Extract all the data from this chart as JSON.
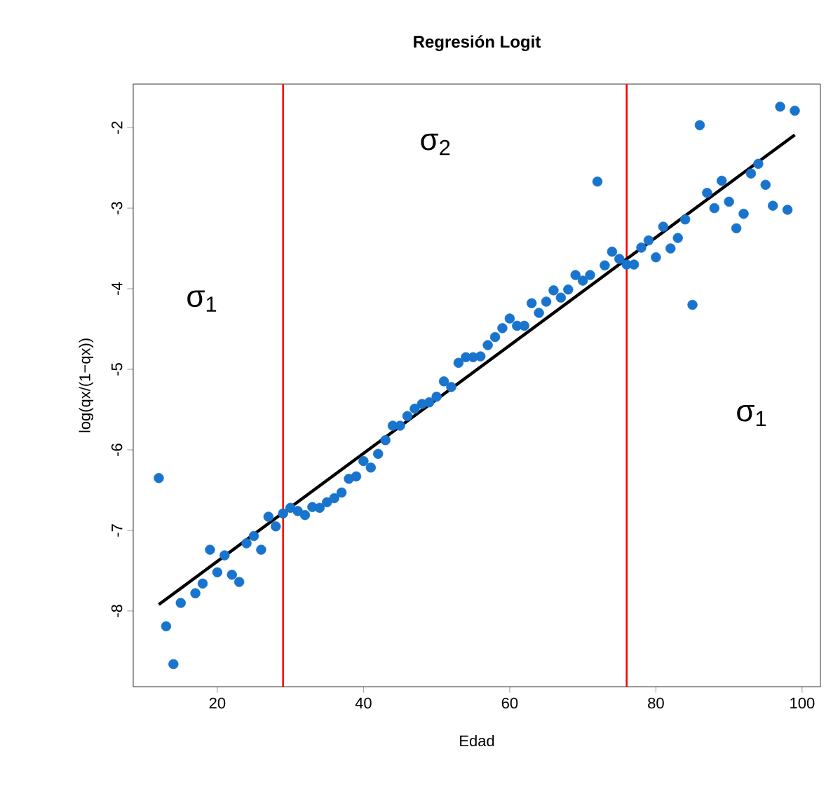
{
  "chart_data": {
    "type": "scatter",
    "title": "**Regresión Logit**",
    "xlabel": "Edad",
    "ylabel": "log(qx/(1−qx))",
    "xlim": [
      8.5,
      102.5
    ],
    "ylim": [
      -8.94,
      -1.46
    ],
    "xticks": [
      20,
      40,
      60,
      80,
      100
    ],
    "yticks": [
      -8,
      -7,
      -6,
      -5,
      -4,
      -3,
      -2
    ],
    "grid": false,
    "marker": "circle",
    "series": [
      {
        "color": "#1874cd",
        "x": [
          12,
          13,
          14,
          15,
          17,
          18,
          19,
          20,
          21,
          22,
          23,
          24,
          25,
          26,
          27,
          28,
          29,
          30,
          31,
          32,
          33,
          34,
          35,
          36,
          37,
          38,
          39,
          40,
          41,
          42,
          43,
          44,
          45,
          46,
          47,
          48,
          49,
          50,
          51,
          52,
          53,
          54,
          55,
          56,
          57,
          58,
          59,
          60,
          61,
          62,
          63,
          64,
          65,
          66,
          67,
          68,
          69,
          70,
          71,
          72,
          73,
          74,
          75,
          76,
          77,
          78,
          79,
          80,
          81,
          82,
          83,
          84,
          85,
          86,
          87,
          88,
          89,
          90,
          91,
          92,
          93,
          94,
          95,
          96,
          97,
          98,
          99
        ],
        "values": [
          -6.35,
          -8.19,
          -8.66,
          -7.9,
          -7.78,
          -7.66,
          -7.24,
          -7.52,
          -7.31,
          -7.55,
          -7.64,
          -7.16,
          -7.07,
          -7.24,
          -6.83,
          -6.95,
          -6.79,
          -6.72,
          -6.76,
          -6.81,
          -6.71,
          -6.72,
          -6.65,
          -6.6,
          -6.53,
          -6.36,
          -6.33,
          -6.14,
          -6.22,
          -6.05,
          -5.88,
          -5.7,
          -5.7,
          -5.58,
          -5.49,
          -5.43,
          -5.41,
          -5.34,
          -5.15,
          -5.22,
          -4.92,
          -4.85,
          -4.85,
          -4.84,
          -4.7,
          -4.6,
          -4.49,
          -4.37,
          -4.46,
          -4.46,
          -4.18,
          -4.3,
          -4.16,
          -4.02,
          -4.11,
          -4.01,
          -3.83,
          -3.9,
          -3.83,
          -2.67,
          -3.71,
          -3.54,
          -3.63,
          -3.7,
          -3.7,
          -3.49,
          -3.4,
          -3.61,
          -3.23,
          -3.5,
          -3.37,
          -3.14,
          -4.2,
          -1.97,
          -2.81,
          -3.0,
          -2.66,
          -2.92,
          -3.25,
          -3.07,
          -2.57,
          -2.45,
          -2.71,
          -2.97,
          -1.74,
          -3.02,
          -1.79
        ]
      },
      {
        "type": "line",
        "color": "#000000",
        "marker": "none",
        "x": [
          12,
          99
        ],
        "values": [
          -7.92,
          -2.09
        ]
      }
    ],
    "ref_lines": [
      {
        "axis": "x",
        "value": 29,
        "color": "#ff0000"
      },
      {
        "axis": "x",
        "value": 76,
        "color": "#ff0000"
      }
    ],
    "annotations": [
      "σ$_{1}$",
      "σ$_{2}$",
      "σ$_{1}$"
    ]
  }
}
